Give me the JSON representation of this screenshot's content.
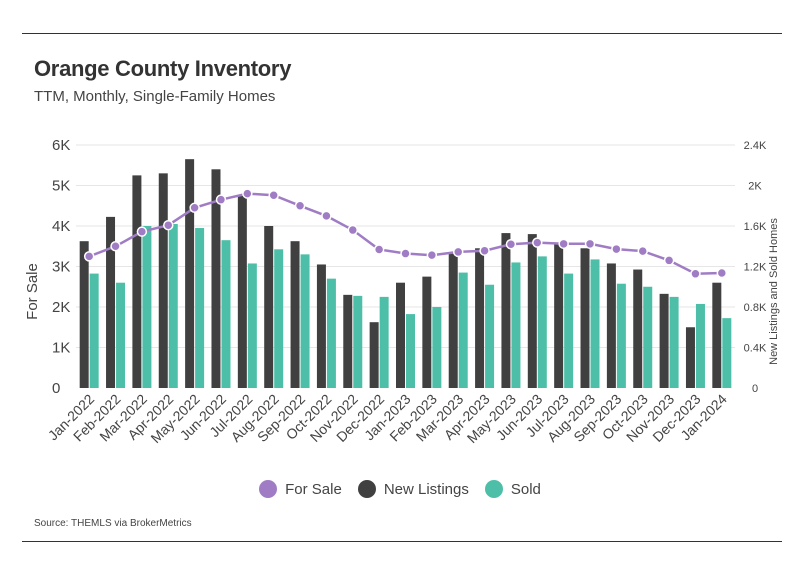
{
  "title": "Orange County Inventory",
  "subtitle": "TTM, Monthly, Single-Family Homes",
  "source": "Source:  THEMLS via BrokerMetrics",
  "colors": {
    "for_sale": "#a07cc5",
    "new_listings": "#404040",
    "sold": "#4dbfa8"
  },
  "chart_data": {
    "type": "bar",
    "categories": [
      "Jan-2022",
      "Feb-2022",
      "Mar-2022",
      "Apr-2022",
      "May-2022",
      "Jun-2022",
      "Jul-2022",
      "Aug-2022",
      "Sep-2022",
      "Oct-2022",
      "Nov-2022",
      "Dec-2022",
      "Jan-2023",
      "Feb-2023",
      "Mar-2023",
      "Apr-2023",
      "May-2023",
      "Jun-2023",
      "Jul-2023",
      "Aug-2023",
      "Sep-2023",
      "Oct-2023",
      "Nov-2023",
      "Dec-2023",
      "Jan-2024"
    ],
    "ylabel": "For Sale",
    "y2label": "New Listings and Sold Homes",
    "ylim": [
      0,
      6000
    ],
    "y2lim": [
      0,
      2400
    ],
    "yticks": [
      "0",
      "1K",
      "2K",
      "3K",
      "4K",
      "5K",
      "6K"
    ],
    "y2ticks": [
      "0",
      "0.4K",
      "0.8K",
      "1.2K",
      "1.6K",
      "2K",
      "2.4K"
    ],
    "grid": true,
    "legend_position": "bottom-center",
    "series": [
      {
        "name": "For Sale",
        "type": "line",
        "axis": "left",
        "values": [
          3250,
          3500,
          3860,
          4020,
          4450,
          4650,
          4800,
          4760,
          4500,
          4250,
          3900,
          3420,
          3320,
          3280,
          3360,
          3390,
          3550,
          3590,
          3560,
          3560,
          3430,
          3380,
          3150,
          2820,
          2840
        ]
      },
      {
        "name": "New Listings",
        "type": "bar",
        "axis": "right",
        "values": [
          1450,
          1690,
          2100,
          2120,
          2260,
          2160,
          1910,
          1600,
          1450,
          1220,
          920,
          650,
          1040,
          1100,
          1330,
          1380,
          1530,
          1520,
          1420,
          1380,
          1230,
          1170,
          930,
          600,
          1040
        ]
      },
      {
        "name": "Sold",
        "type": "bar",
        "axis": "right",
        "values": [
          1130,
          1040,
          1600,
          1620,
          1580,
          1460,
          1230,
          1370,
          1320,
          1080,
          910,
          900,
          730,
          800,
          1140,
          1020,
          1240,
          1300,
          1130,
          1270,
          1030,
          1000,
          900,
          830,
          690
        ]
      }
    ]
  }
}
